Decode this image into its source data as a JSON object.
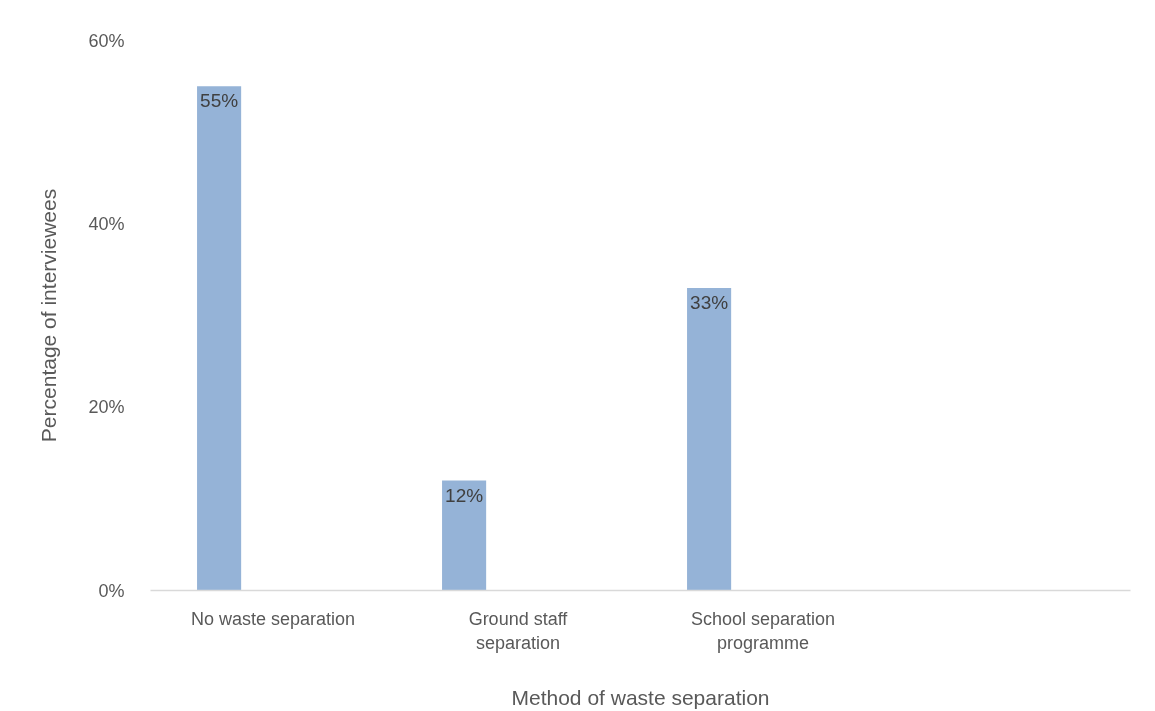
{
  "chart_data": {
    "type": "bar",
    "xlabel": "Method of waste separation",
    "ylabel": "Percentage of interviewees",
    "categories": [
      "No waste separation",
      "Ground staff separation",
      "School separation programme",
      null
    ],
    "values": [
      55,
      12,
      33,
      null
    ],
    "color": "#95b3d7",
    "value_labels": [
      "55%",
      "12%",
      "33%",
      null
    ],
    "ylim": [
      0,
      60
    ],
    "yticks": [
      {
        "value": 0,
        "label": "0%"
      },
      {
        "value": 20,
        "label": "20%"
      },
      {
        "value": 40,
        "label": "40%"
      },
      {
        "value": 60,
        "label": "60%"
      }
    ],
    "grid": false
  }
}
